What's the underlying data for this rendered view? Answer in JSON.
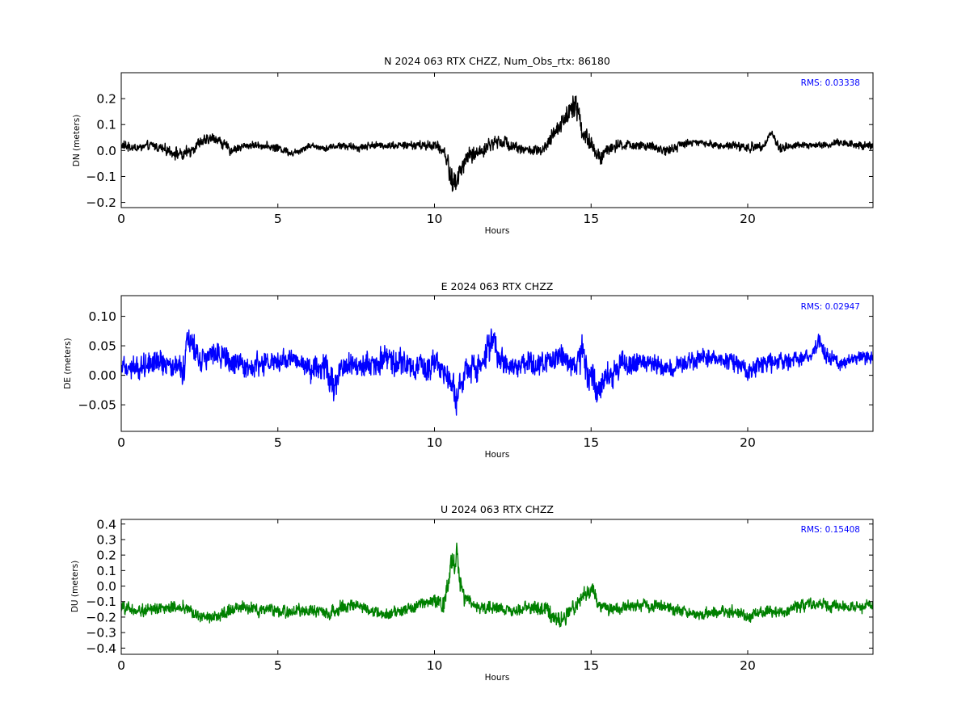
{
  "chart_data": [
    {
      "type": "scatter",
      "title": "N 2024 063 RTX  CHZZ, Num_Obs_rtx: 86180",
      "xlabel": "Hours",
      "ylabel": "DN (meters)",
      "xlim": [
        0,
        24
      ],
      "ylim": [
        -0.22,
        0.3
      ],
      "xticks": [
        0,
        5,
        10,
        15,
        20
      ],
      "yticks": [
        -0.2,
        -0.1,
        0.0,
        0.1,
        0.2
      ],
      "ytick_labels": [
        "−0.2",
        "−0.1",
        "0.0",
        "0.1",
        "0.2"
      ],
      "annotation": "RMS:  0.03338",
      "color": "#000000",
      "series": [
        {
          "x": [
            0,
            0.5,
            1,
            1.5,
            2,
            2.5,
            3,
            3.5,
            4,
            4.5,
            5,
            5.5,
            6,
            6.5,
            7,
            7.5,
            8,
            8.5,
            9,
            9.5,
            10,
            10.3,
            10.6,
            10.8,
            11,
            11.5,
            12,
            12.5,
            13,
            13.5,
            14,
            14.3,
            14.5,
            14.7,
            15,
            15.3,
            15.6,
            16,
            16.5,
            17,
            17.5,
            18,
            18.5,
            19,
            19.5,
            20,
            20.5,
            20.75,
            21,
            21.5,
            22,
            22.5,
            23,
            23.5,
            24
          ],
          "y": [
            0.02,
            0.01,
            0.02,
            0.0,
            -0.02,
            0.03,
            0.05,
            0.0,
            0.02,
            0.02,
            0.01,
            -0.01,
            0.02,
            0.01,
            0.02,
            0.01,
            0.02,
            0.02,
            0.02,
            0.02,
            0.02,
            0.0,
            -0.13,
            -0.09,
            -0.03,
            0.0,
            0.04,
            0.02,
            0.0,
            0.0,
            0.1,
            0.15,
            0.2,
            0.08,
            0.02,
            -0.03,
            0.01,
            0.02,
            0.02,
            0.01,
            0.0,
            0.03,
            0.03,
            0.02,
            0.02,
            0.01,
            0.02,
            0.07,
            0.01,
            0.02,
            0.02,
            0.02,
            0.03,
            0.02,
            0.02
          ],
          "spread": [
            0.025,
            0.022,
            0.022,
            0.025,
            0.035,
            0.028,
            0.025,
            0.025,
            0.018,
            0.018,
            0.02,
            0.02,
            0.018,
            0.016,
            0.018,
            0.018,
            0.018,
            0.018,
            0.018,
            0.022,
            0.025,
            0.03,
            0.07,
            0.06,
            0.04,
            0.035,
            0.035,
            0.03,
            0.025,
            0.03,
            0.045,
            0.06,
            0.07,
            0.05,
            0.045,
            0.045,
            0.035,
            0.025,
            0.022,
            0.025,
            0.025,
            0.022,
            0.018,
            0.018,
            0.02,
            0.025,
            0.02,
            0.02,
            0.025,
            0.018,
            0.018,
            0.02,
            0.022,
            0.025,
            0.02
          ]
        }
      ]
    },
    {
      "type": "scatter",
      "title": "E 2024 063 RTX  CHZZ",
      "xlabel": "Hours",
      "ylabel": "DE (meters)",
      "xlim": [
        0,
        24
      ],
      "ylim": [
        -0.095,
        0.135
      ],
      "xticks": [
        0,
        5,
        10,
        15,
        20
      ],
      "yticks": [
        -0.05,
        0.0,
        0.05,
        0.1
      ],
      "ytick_labels": [
        "−0.05",
        "0.00",
        "0.05",
        "0.10"
      ],
      "annotation": "RMS:  0.02947",
      "color": "#0000ff",
      "series": [
        {
          "x": [
            0,
            0.5,
            1,
            1.5,
            2,
            2.1,
            2.5,
            3,
            3.5,
            4,
            4.5,
            5,
            5.5,
            6,
            6.5,
            6.8,
            7,
            7.5,
            8,
            8.5,
            9,
            9.5,
            10,
            10.5,
            10.7,
            11,
            11.5,
            11.9,
            12,
            12.5,
            13,
            13.5,
            14,
            14.5,
            14.7,
            15,
            15.3,
            15.5,
            16,
            16.5,
            17,
            17.5,
            18,
            18.5,
            19,
            19.5,
            20,
            20.5,
            21,
            21.5,
            22,
            22.3,
            22.5,
            23,
            23.5,
            24
          ],
          "y": [
            0.02,
            0.01,
            0.03,
            0.02,
            0.01,
            0.07,
            0.03,
            0.04,
            0.02,
            0.01,
            0.02,
            0.02,
            0.03,
            0.01,
            0.02,
            -0.02,
            0.01,
            0.02,
            0.02,
            0.03,
            0.02,
            0.01,
            0.02,
            0.0,
            -0.04,
            0.01,
            0.02,
            0.06,
            0.03,
            0.01,
            0.02,
            0.02,
            0.03,
            0.02,
            0.04,
            0.0,
            -0.03,
            0.0,
            0.02,
            0.02,
            0.02,
            0.01,
            0.02,
            0.03,
            0.03,
            0.02,
            0.01,
            0.02,
            0.02,
            0.03,
            0.03,
            0.06,
            0.03,
            0.02,
            0.03,
            0.03
          ],
          "spread": [
            0.02,
            0.025,
            0.03,
            0.025,
            0.035,
            0.04,
            0.03,
            0.03,
            0.025,
            0.025,
            0.025,
            0.025,
            0.022,
            0.025,
            0.03,
            0.035,
            0.025,
            0.025,
            0.03,
            0.03,
            0.03,
            0.025,
            0.03,
            0.03,
            0.04,
            0.03,
            0.03,
            0.035,
            0.03,
            0.025,
            0.025,
            0.025,
            0.025,
            0.03,
            0.04,
            0.035,
            0.04,
            0.035,
            0.03,
            0.025,
            0.02,
            0.02,
            0.02,
            0.022,
            0.02,
            0.022,
            0.022,
            0.02,
            0.02,
            0.018,
            0.015,
            0.02,
            0.018,
            0.015,
            0.015,
            0.015
          ]
        }
      ]
    },
    {
      "type": "scatter",
      "title": "U 2024 063 RTX  CHZZ",
      "xlabel": "Hours",
      "ylabel": "DU (meters)",
      "xlim": [
        0,
        24
      ],
      "ylim": [
        -0.44,
        0.43
      ],
      "xticks": [
        0,
        5,
        10,
        15,
        20
      ],
      "yticks": [
        -0.4,
        -0.3,
        -0.2,
        -0.1,
        0.0,
        0.1,
        0.2,
        0.3,
        0.4
      ],
      "ytick_labels": [
        "−0.4",
        "−0.3",
        "−0.2",
        "−0.1",
        "0.0",
        "0.1",
        "0.2",
        "0.3",
        "0.4"
      ],
      "annotation": "RMS:  0.15408",
      "color": "#008000",
      "series": [
        {
          "x": [
            0,
            0.5,
            1,
            1.5,
            2,
            2.5,
            3,
            3.5,
            4,
            4.5,
            5,
            5.5,
            6,
            6.5,
            7,
            7.5,
            8,
            8.5,
            9,
            9.5,
            10,
            10.3,
            10.55,
            10.7,
            10.9,
            11.2,
            11.5,
            12,
            12.5,
            13,
            13.5,
            14,
            14.5,
            14.8,
            15,
            15.3,
            15.6,
            16,
            16.5,
            17,
            17.5,
            18,
            18.5,
            19,
            19.5,
            20,
            20.5,
            21,
            21.5,
            22,
            22.5,
            23,
            23.5,
            24
          ],
          "y": [
            -0.14,
            -0.16,
            -0.14,
            -0.15,
            -0.13,
            -0.2,
            -0.2,
            -0.15,
            -0.14,
            -0.16,
            -0.16,
            -0.17,
            -0.15,
            -0.18,
            -0.14,
            -0.12,
            -0.16,
            -0.18,
            -0.16,
            -0.12,
            -0.09,
            -0.12,
            0.15,
            0.2,
            -0.06,
            -0.12,
            -0.15,
            -0.13,
            -0.17,
            -0.13,
            -0.15,
            -0.22,
            -0.13,
            -0.05,
            -0.03,
            -0.12,
            -0.15,
            -0.14,
            -0.12,
            -0.13,
            -0.14,
            -0.17,
            -0.18,
            -0.17,
            -0.16,
            -0.2,
            -0.17,
            -0.17,
            -0.14,
            -0.11,
            -0.12,
            -0.14,
            -0.13,
            -0.12
          ],
          "spread": [
            0.05,
            0.05,
            0.05,
            0.05,
            0.05,
            0.05,
            0.05,
            0.05,
            0.05,
            0.05,
            0.05,
            0.05,
            0.05,
            0.05,
            0.06,
            0.05,
            0.05,
            0.05,
            0.05,
            0.05,
            0.06,
            0.08,
            0.12,
            0.12,
            0.09,
            0.06,
            0.05,
            0.05,
            0.05,
            0.05,
            0.06,
            0.07,
            0.06,
            0.06,
            0.07,
            0.06,
            0.05,
            0.05,
            0.05,
            0.05,
            0.05,
            0.05,
            0.05,
            0.05,
            0.05,
            0.05,
            0.05,
            0.05,
            0.05,
            0.05,
            0.05,
            0.05,
            0.05,
            0.05
          ]
        }
      ]
    }
  ]
}
